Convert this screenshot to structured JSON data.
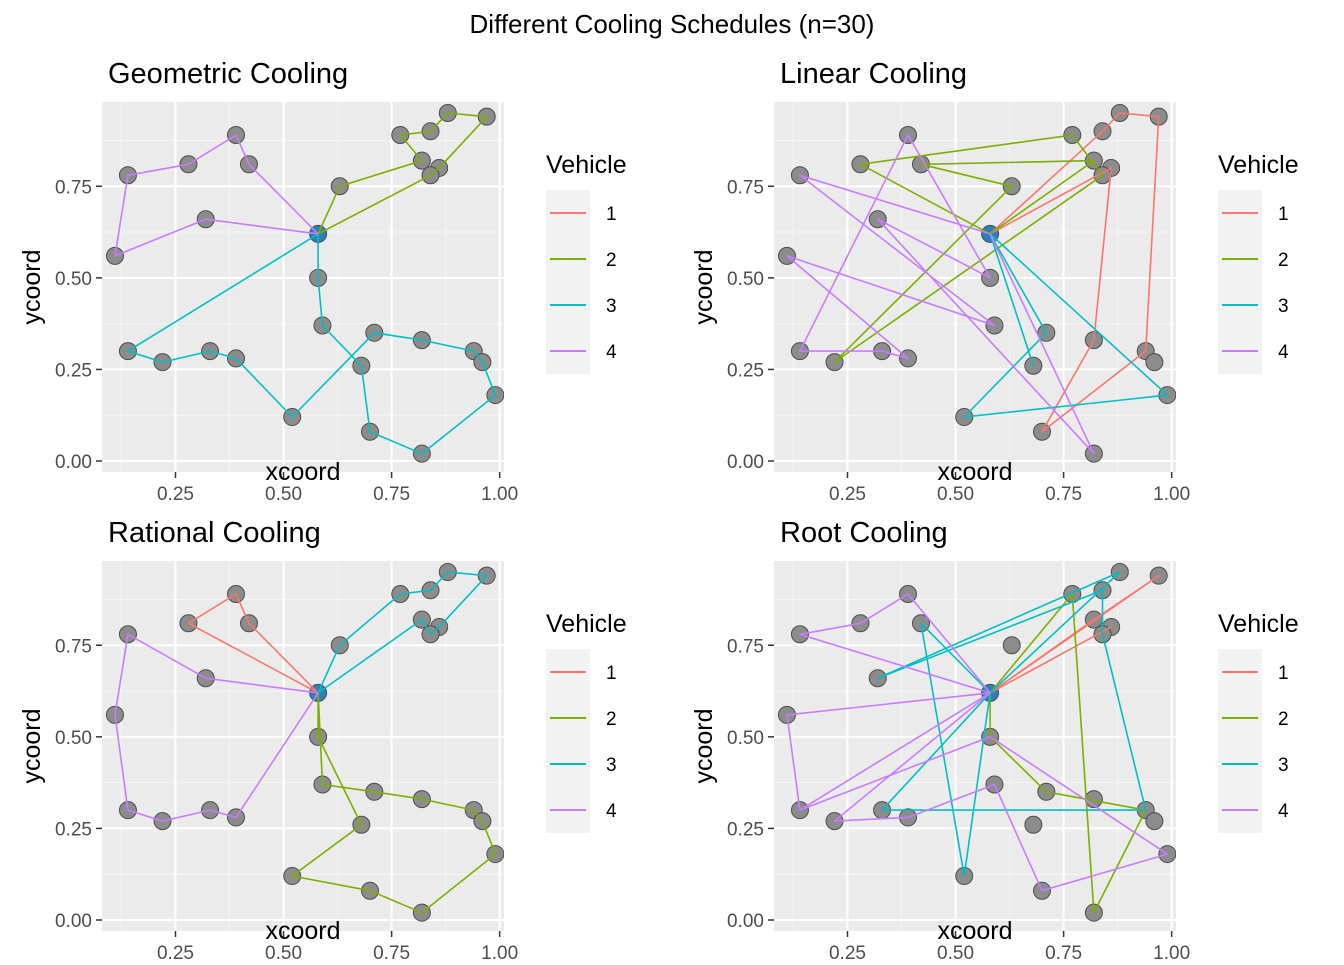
{
  "title": "Different Cooling Schedules (n=30)",
  "colors": {
    "panel_bg": "#EBEBEB",
    "grid_major": "#FFFFFF",
    "point_fill": "#8C8C8C",
    "point_stroke": "#4D4D4D",
    "depot": "#2C7FB8"
  },
  "chart_data": {
    "type": "scatter",
    "xlabel": "xcoord",
    "ylabel": "ycoord",
    "xlim": [
      0.08,
      1.01
    ],
    "ylim": [
      -0.03,
      0.98
    ],
    "x_ticks": [
      0.25,
      0.5,
      0.75,
      1.0
    ],
    "x_tick_labels": [
      "0.25",
      "0.50",
      "0.75",
      "1.00"
    ],
    "y_ticks": [
      0.0,
      0.25,
      0.5,
      0.75
    ],
    "y_tick_labels": [
      "0.00",
      "0.25",
      "0.50",
      "0.75"
    ],
    "legend": {
      "title": "Vehicle",
      "position": "right",
      "entries": [
        {
          "name": "1",
          "color": "#F8766D"
        },
        {
          "name": "2",
          "color": "#7CAE00"
        },
        {
          "name": "3",
          "color": "#00BFC4"
        },
        {
          "name": "4",
          "color": "#C77CFF"
        }
      ]
    },
    "depot": {
      "x": 0.58,
      "y": 0.62
    },
    "points": [
      [
        0.97,
        0.94
      ],
      [
        0.88,
        0.95
      ],
      [
        0.84,
        0.9
      ],
      [
        0.77,
        0.89
      ],
      [
        0.82,
        0.82
      ],
      [
        0.86,
        0.8
      ],
      [
        0.84,
        0.78
      ],
      [
        0.63,
        0.75
      ],
      [
        0.39,
        0.89
      ],
      [
        0.28,
        0.81
      ],
      [
        0.42,
        0.81
      ],
      [
        0.14,
        0.78
      ],
      [
        0.11,
        0.56
      ],
      [
        0.32,
        0.66
      ],
      [
        0.58,
        0.5
      ],
      [
        0.59,
        0.37
      ],
      [
        0.71,
        0.35
      ],
      [
        0.68,
        0.26
      ],
      [
        0.82,
        0.33
      ],
      [
        0.94,
        0.3
      ],
      [
        0.96,
        0.27
      ],
      [
        0.99,
        0.18
      ],
      [
        0.52,
        0.12
      ],
      [
        0.7,
        0.08
      ],
      [
        0.82,
        0.02
      ],
      [
        0.14,
        0.3
      ],
      [
        0.22,
        0.27
      ],
      [
        0.33,
        0.3
      ],
      [
        0.39,
        0.28
      ]
    ],
    "panels": [
      {
        "title": "Geometric Cooling",
        "routes": [
          {
            "vehicle": 2,
            "path": [
              [
                0.58,
                0.62
              ],
              [
                0.63,
                0.75
              ],
              [
                0.82,
                0.82
              ],
              [
                0.77,
                0.89
              ],
              [
                0.84,
                0.9
              ],
              [
                0.88,
                0.95
              ],
              [
                0.97,
                0.94
              ],
              [
                0.86,
                0.8
              ],
              [
                0.84,
                0.78
              ],
              [
                0.58,
                0.62
              ]
            ]
          },
          {
            "vehicle": 3,
            "path": [
              [
                0.58,
                0.62
              ],
              [
                0.14,
                0.3
              ],
              [
                0.22,
                0.27
              ],
              [
                0.33,
                0.3
              ],
              [
                0.39,
                0.28
              ],
              [
                0.52,
                0.12
              ],
              [
                0.71,
                0.35
              ],
              [
                0.82,
                0.33
              ],
              [
                0.94,
                0.3
              ],
              [
                0.96,
                0.27
              ],
              [
                0.99,
                0.18
              ],
              [
                0.82,
                0.02
              ],
              [
                0.7,
                0.08
              ],
              [
                0.68,
                0.26
              ],
              [
                0.59,
                0.37
              ],
              [
                0.58,
                0.5
              ],
              [
                0.58,
                0.62
              ]
            ]
          },
          {
            "vehicle": 4,
            "path": [
              [
                0.58,
                0.62
              ],
              [
                0.32,
                0.66
              ],
              [
                0.11,
                0.56
              ],
              [
                0.14,
                0.78
              ],
              [
                0.28,
                0.81
              ],
              [
                0.39,
                0.89
              ],
              [
                0.42,
                0.81
              ],
              [
                0.58,
                0.62
              ]
            ]
          }
        ]
      },
      {
        "title": "Linear Cooling",
        "routes": [
          {
            "vehicle": 1,
            "path": [
              [
                0.58,
                0.62
              ],
              [
                0.84,
                0.9
              ],
              [
                0.88,
                0.95
              ],
              [
                0.97,
                0.94
              ],
              [
                0.94,
                0.3
              ],
              [
                0.7,
                0.08
              ],
              [
                0.82,
                0.33
              ],
              [
                0.86,
                0.8
              ],
              [
                0.58,
                0.62
              ]
            ]
          },
          {
            "vehicle": 2,
            "path": [
              [
                0.58,
                0.62
              ],
              [
                0.28,
                0.81
              ],
              [
                0.77,
                0.89
              ],
              [
                0.84,
                0.78
              ],
              [
                0.22,
                0.27
              ],
              [
                0.63,
                0.75
              ],
              [
                0.42,
                0.81
              ],
              [
                0.82,
                0.82
              ],
              [
                0.58,
                0.62
              ]
            ]
          },
          {
            "vehicle": 3,
            "path": [
              [
                0.58,
                0.62
              ],
              [
                0.71,
                0.35
              ],
              [
                0.52,
                0.12
              ],
              [
                0.99,
                0.18
              ],
              [
                0.58,
                0.62
              ],
              [
                0.68,
                0.26
              ],
              [
                0.58,
                0.62
              ]
            ]
          },
          {
            "vehicle": 4,
            "path": [
              [
                0.58,
                0.62
              ],
              [
                0.14,
                0.78
              ],
              [
                0.59,
                0.37
              ],
              [
                0.11,
                0.56
              ],
              [
                0.39,
                0.28
              ],
              [
                0.33,
                0.3
              ],
              [
                0.14,
                0.3
              ],
              [
                0.39,
                0.89
              ],
              [
                0.58,
                0.5
              ],
              [
                0.32,
                0.66
              ],
              [
                0.82,
                0.02
              ],
              [
                0.58,
                0.62
              ]
            ]
          }
        ]
      },
      {
        "title": "Rational Cooling",
        "routes": [
          {
            "vehicle": 1,
            "path": [
              [
                0.58,
                0.62
              ],
              [
                0.28,
                0.81
              ],
              [
                0.39,
                0.89
              ],
              [
                0.42,
                0.81
              ],
              [
                0.58,
                0.62
              ]
            ]
          },
          {
            "vehicle": 2,
            "path": [
              [
                0.58,
                0.62
              ],
              [
                0.59,
                0.37
              ],
              [
                0.71,
                0.35
              ],
              [
                0.82,
                0.33
              ],
              [
                0.94,
                0.3
              ],
              [
                0.96,
                0.27
              ],
              [
                0.99,
                0.18
              ],
              [
                0.82,
                0.02
              ],
              [
                0.7,
                0.08
              ],
              [
                0.52,
                0.12
              ],
              [
                0.68,
                0.26
              ],
              [
                0.58,
                0.5
              ],
              [
                0.58,
                0.62
              ]
            ]
          },
          {
            "vehicle": 3,
            "path": [
              [
                0.58,
                0.62
              ],
              [
                0.63,
                0.75
              ],
              [
                0.77,
                0.89
              ],
              [
                0.84,
                0.9
              ],
              [
                0.88,
                0.95
              ],
              [
                0.97,
                0.94
              ],
              [
                0.86,
                0.8
              ],
              [
                0.84,
                0.78
              ],
              [
                0.82,
                0.82
              ],
              [
                0.58,
                0.62
              ]
            ]
          },
          {
            "vehicle": 4,
            "path": [
              [
                0.58,
                0.62
              ],
              [
                0.32,
                0.66
              ],
              [
                0.14,
                0.78
              ],
              [
                0.11,
                0.56
              ],
              [
                0.14,
                0.3
              ],
              [
                0.22,
                0.27
              ],
              [
                0.33,
                0.3
              ],
              [
                0.39,
                0.28
              ],
              [
                0.58,
                0.62
              ]
            ]
          }
        ]
      },
      {
        "title": "Root Cooling",
        "routes": [
          {
            "vehicle": 1,
            "path": [
              [
                0.58,
                0.62
              ],
              [
                0.82,
                0.82
              ],
              [
                0.97,
                0.94
              ],
              [
                0.58,
                0.62
              ],
              [
                0.86,
                0.8
              ],
              [
                0.58,
                0.62
              ]
            ]
          },
          {
            "vehicle": 2,
            "path": [
              [
                0.58,
                0.62
              ],
              [
                0.77,
                0.89
              ],
              [
                0.82,
                0.02
              ],
              [
                0.94,
                0.3
              ],
              [
                0.71,
                0.35
              ],
              [
                0.58,
                0.5
              ],
              [
                0.58,
                0.62
              ]
            ]
          },
          {
            "vehicle": 3,
            "path": [
              [
                0.58,
                0.62
              ],
              [
                0.42,
                0.81
              ],
              [
                0.52,
                0.12
              ],
              [
                0.58,
                0.62
              ],
              [
                0.88,
                0.95
              ],
              [
                0.32,
                0.66
              ],
              [
                0.84,
                0.9
              ],
              [
                0.84,
                0.78
              ],
              [
                0.94,
                0.3
              ],
              [
                0.33,
                0.3
              ],
              [
                0.58,
                0.62
              ]
            ]
          },
          {
            "vehicle": 4,
            "path": [
              [
                0.58,
                0.62
              ],
              [
                0.14,
                0.3
              ],
              [
                0.58,
                0.62
              ],
              [
                0.14,
                0.78
              ],
              [
                0.28,
                0.81
              ],
              [
                0.39,
                0.89
              ],
              [
                0.58,
                0.62
              ],
              [
                0.11,
                0.56
              ],
              [
                0.14,
                0.3
              ],
              [
                0.58,
                0.5
              ],
              [
                0.99,
                0.18
              ],
              [
                0.7,
                0.08
              ],
              [
                0.59,
                0.37
              ],
              [
                0.39,
                0.28
              ],
              [
                0.22,
                0.27
              ],
              [
                0.58,
                0.62
              ]
            ]
          }
        ]
      }
    ]
  }
}
